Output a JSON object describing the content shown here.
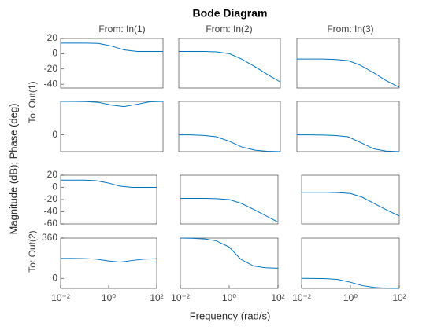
{
  "title": "Bode Diagram",
  "column_titles": [
    "From: In(1)",
    "From: In(2)",
    "From: In(3)"
  ],
  "row_titles": [
    "To: Out(1)",
    "To: Out(2)"
  ],
  "ylabel": "Magnitude (dB); Phase (deg)",
  "xlabel": "Frequency (rad/s)",
  "chart_data": [
    {
      "type": "line",
      "color": "#0072bd",
      "log_x": true,
      "xlim": [
        0.01,
        100
      ],
      "ylim": [
        -45,
        20
      ],
      "yticks": [
        20,
        0,
        -20,
        -40
      ],
      "x": [
        0.01,
        0.03,
        0.1,
        0.3,
        1,
        3,
        10,
        30,
        100
      ],
      "values": [
        14,
        14,
        14,
        13.5,
        10,
        5,
        3,
        3,
        3
      ]
    },
    {
      "type": "line",
      "color": "#0072bd",
      "log_x": true,
      "xlim": [
        0.01,
        100
      ],
      "ylim": [
        -45,
        20
      ],
      "x": [
        0.01,
        0.03,
        0.1,
        0.3,
        1,
        3,
        10,
        30,
        100
      ],
      "values": [
        3,
        3,
        3,
        2.5,
        0,
        -7,
        -17,
        -27,
        -37
      ]
    },
    {
      "type": "line",
      "color": "#0072bd",
      "log_x": true,
      "xlim": [
        0.01,
        100
      ],
      "ylim": [
        -45,
        20
      ],
      "x": [
        0.01,
        0.03,
        0.1,
        0.3,
        1,
        3,
        10,
        30,
        100
      ],
      "values": [
        -7,
        -7,
        -7,
        -7.5,
        -9,
        -15,
        -25,
        -35,
        -44
      ]
    },
    {
      "type": "line",
      "color": "#0072bd",
      "log_x": true,
      "xlim": [
        0.01,
        100
      ],
      "ylim": [
        -90,
        180
      ],
      "yticks": [
        0
      ],
      "x": [
        0.01,
        0.03,
        0.1,
        0.3,
        1,
        3,
        10,
        30,
        100
      ],
      "values": [
        180,
        180,
        179,
        175,
        160,
        152,
        165,
        178,
        180
      ]
    },
    {
      "type": "line",
      "color": "#0072bd",
      "log_x": true,
      "xlim": [
        0.01,
        100
      ],
      "ylim": [
        -90,
        180
      ],
      "x": [
        0.01,
        0.03,
        0.1,
        0.3,
        1,
        3,
        10,
        30,
        100
      ],
      "values": [
        0,
        0,
        -3,
        -10,
        -35,
        -65,
        -82,
        -88,
        -90
      ]
    },
    {
      "type": "line",
      "color": "#0072bd",
      "log_x": true,
      "xlim": [
        0.01,
        100
      ],
      "ylim": [
        -90,
        180
      ],
      "x": [
        0.01,
        0.03,
        0.1,
        0.3,
        1,
        3,
        10,
        30,
        100
      ],
      "values": [
        0,
        0,
        -1,
        -3,
        -10,
        -40,
        -75,
        -87,
        -90
      ]
    },
    {
      "type": "line",
      "color": "#0072bd",
      "log_x": true,
      "xlim": [
        0.01,
        100
      ],
      "ylim": [
        -60,
        20
      ],
      "yticks": [
        20,
        0,
        -20,
        -40,
        -60
      ],
      "x": [
        0.01,
        0.03,
        0.1,
        0.3,
        1,
        3,
        10,
        30,
        100
      ],
      "values": [
        12,
        12,
        12,
        11,
        7,
        2,
        0,
        0,
        0
      ]
    },
    {
      "type": "line",
      "color": "#0072bd",
      "log_x": true,
      "xlim": [
        0.01,
        100
      ],
      "ylim": [
        -60,
        20
      ],
      "x": [
        0.01,
        0.03,
        0.1,
        0.3,
        1,
        3,
        10,
        30,
        100
      ],
      "values": [
        -18,
        -18,
        -18,
        -18.5,
        -20,
        -26,
        -36,
        -46,
        -57
      ]
    },
    {
      "type": "line",
      "color": "#0072bd",
      "log_x": true,
      "xlim": [
        0.01,
        100
      ],
      "ylim": [
        -60,
        20
      ],
      "x": [
        0.01,
        0.03,
        0.1,
        0.3,
        1,
        3,
        10,
        30,
        100
      ],
      "values": [
        -8,
        -8,
        -8,
        -8.5,
        -10,
        -16,
        -27,
        -37,
        -47
      ]
    },
    {
      "type": "line",
      "color": "#0072bd",
      "log_x": true,
      "xlim": [
        0.01,
        100
      ],
      "ylim": [
        -90,
        360
      ],
      "yticks": [
        360,
        0
      ],
      "xticks": [
        {
          "value": 0.01,
          "label": "10⁻²"
        },
        {
          "value": 1,
          "label": "10⁰"
        },
        {
          "value": 100,
          "label": "10²"
        }
      ],
      "x": [
        0.01,
        0.03,
        0.1,
        0.3,
        1,
        3,
        10,
        30,
        100
      ],
      "values": [
        178,
        178,
        176,
        172,
        155,
        145,
        160,
        172,
        175
      ]
    },
    {
      "type": "line",
      "color": "#0072bd",
      "log_x": true,
      "xlim": [
        0.01,
        100
      ],
      "ylim": [
        -90,
        360
      ],
      "xticks": [
        {
          "value": 0.01,
          "label": "10⁻²"
        },
        {
          "value": 1,
          "label": "10⁰"
        },
        {
          "value": 100,
          "label": "10²"
        }
      ],
      "x": [
        0.01,
        0.03,
        0.1,
        0.3,
        1,
        3,
        10,
        30,
        100
      ],
      "values": [
        360,
        358,
        352,
        335,
        280,
        170,
        110,
        95,
        90
      ]
    },
    {
      "type": "line",
      "color": "#0072bd",
      "log_x": true,
      "xlim": [
        0.01,
        100
      ],
      "ylim": [
        -90,
        360
      ],
      "xticks": [
        {
          "value": 0.01,
          "label": "10⁻²"
        },
        {
          "value": 1,
          "label": "10⁰"
        },
        {
          "value": 100,
          "label": "10²"
        }
      ],
      "x": [
        0.01,
        0.03,
        0.1,
        0.3,
        1,
        3,
        10,
        30,
        100
      ],
      "values": [
        0,
        -1,
        -3,
        -10,
        -35,
        -65,
        -82,
        -88,
        -90
      ]
    }
  ]
}
